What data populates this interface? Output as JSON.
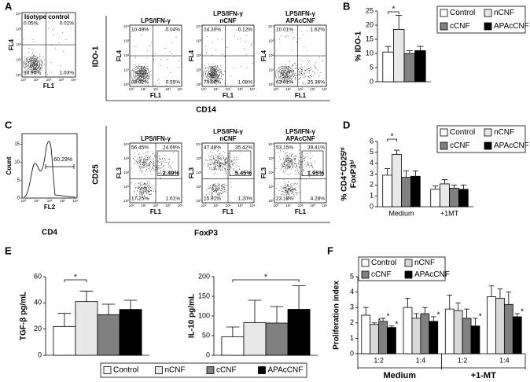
{
  "panel_labels": [
    "A",
    "B",
    "C",
    "D",
    "E",
    "F"
  ],
  "log_ticks": [
    "10⁰",
    "10¹",
    "10²",
    "10³",
    "10⁴"
  ],
  "panel_a": {
    "plot_y_label": "FL4",
    "plot_x_label": "FL1",
    "y_title": "IDO-1",
    "x_title": "CD14",
    "plots": [
      {
        "title": [
          "Isotype control"
        ],
        "quadrants": [
          "0.05%",
          "0.02%",
          "98.90%",
          "1.03%"
        ]
      },
      {
        "title": [
          "LPS/IFN-γ"
        ],
        "quadrants": [
          "10.49%",
          "0.04%",
          "88.92%",
          "0.55%"
        ]
      },
      {
        "title": [
          "LPS/IFN-γ",
          "nCNF"
        ],
        "quadrants": [
          "24.30%",
          "0.12%",
          "74.50%",
          "1.08%"
        ]
      },
      {
        "title": [
          "LPS/IFN-γ",
          "APAcCNF"
        ],
        "quadrants": [
          "10.01%",
          "1.62%",
          "63.01%",
          "25.36%"
        ]
      }
    ]
  },
  "panel_c": {
    "histogram": {
      "y_label": "Count",
      "x_label": "FL2",
      "yticks": [
        0,
        5,
        10,
        15
      ],
      "ylim": [
        0,
        18
      ],
      "gate": "60.29%",
      "title": "CD4"
    },
    "plot_y_label": "FL3",
    "plot_x_label": "FL1",
    "y_title": "CD25",
    "x_title": "FoxP3",
    "plots": [
      {
        "title": [
          "LPS/IFN-γ"
        ],
        "quadrants": [
          "56.45%",
          "24.69%",
          "17.25%",
          "1.61%"
        ],
        "gate": "2.49%"
      },
      {
        "title": [
          "LPS/IFN-γ",
          "nCNF"
        ],
        "quadrants": [
          "47.48%",
          "35.42%",
          "15.91%",
          "1.20%"
        ],
        "gate": "5.45%"
      },
      {
        "title": [
          "LPS/IFN-γ",
          "APAcCNF"
        ],
        "quadrants": [
          "53.15%",
          "39.41%",
          "23.18%",
          "4.28%"
        ],
        "gate": "1.95%"
      }
    ]
  },
  "chart_data": [
    {
      "type": "bar",
      "y_label": [
        "% IDO-1"
      ],
      "categories": [
        null
      ],
      "ylim": [
        0,
        25
      ],
      "yticks": [
        0,
        5,
        10,
        15,
        20,
        25
      ],
      "legend": "right",
      "annotations": [
        "*"
      ],
      "series": [
        {
          "name": "Control",
          "color": "#ffffff",
          "values": [
            10.5
          ],
          "errors": [
            2
          ]
        },
        {
          "name": "nCNF",
          "color": "#e8e8e8",
          "values": [
            18.5
          ],
          "errors": [
            5
          ]
        },
        {
          "name": "cCNF",
          "color": "#808080",
          "values": [
            10
          ],
          "errors": [
            1
          ]
        },
        {
          "name": "APAcCNF",
          "color": "#000000",
          "values": [
            11
          ],
          "errors": [
            1.5
          ]
        }
      ]
    },
    {
      "type": "bar",
      "y_label": [
        "% CD4⁺CD25ʰⁱ",
        "FoxP3ʰⁱ"
      ],
      "categories": [
        "Medium",
        "+1MT"
      ],
      "ylim": [
        0,
        6
      ],
      "yticks": [
        0,
        1,
        2,
        3,
        4,
        5,
        6
      ],
      "legend": "upper right",
      "annotations": [
        "*"
      ],
      "series": [
        {
          "name": "Control",
          "color": "#ffffff",
          "values": [
            2.9,
            1.6
          ],
          "errors": [
            0.6,
            0.3
          ]
        },
        {
          "name": "nCNF",
          "color": "#e8e8e8",
          "values": [
            4.8,
            2.1
          ],
          "errors": [
            0.4,
            0.4
          ]
        },
        {
          "name": "cCNF",
          "color": "#808080",
          "values": [
            2.7,
            1.7
          ],
          "errors": [
            0.6,
            0.3
          ]
        },
        {
          "name": "APAcCNF",
          "color": "#000000",
          "values": [
            2.8,
            1.6
          ],
          "errors": [
            0.5,
            0.4
          ]
        }
      ]
    },
    {
      "type": "bar",
      "y_label": [
        "TGF-β pg/mL"
      ],
      "categories": [
        null
      ],
      "ylim": [
        0,
        60
      ],
      "yticks": [
        0,
        20,
        40,
        60
      ],
      "legend": "bottom",
      "annotations": [
        "*"
      ],
      "series": [
        {
          "name": "Control",
          "color": "#ffffff",
          "values": [
            22
          ],
          "errors": [
            10
          ]
        },
        {
          "name": "nCNF",
          "color": "#e8e8e8",
          "values": [
            41
          ],
          "errors": [
            8
          ]
        },
        {
          "name": "cCNF",
          "color": "#808080",
          "values": [
            31
          ],
          "errors": [
            8
          ]
        },
        {
          "name": "APAcCNF",
          "color": "#000000",
          "values": [
            35
          ],
          "errors": [
            7
          ]
        }
      ]
    },
    {
      "type": "bar",
      "y_label": [
        "IL-10 pg/mL"
      ],
      "categories": [
        null
      ],
      "ylim": [
        0,
        200
      ],
      "yticks": [
        0,
        50,
        100,
        150,
        200
      ],
      "annotations": [
        "*"
      ],
      "series": [
        {
          "color": "#ffffff",
          "values": [
            47
          ],
          "errors": [
            25
          ]
        },
        {
          "color": "#e8e8e8",
          "values": [
            83
          ],
          "errors": [
            57
          ]
        },
        {
          "color": "#808080",
          "values": [
            82
          ],
          "errors": [
            42
          ]
        },
        {
          "color": "#000000",
          "values": [
            117
          ],
          "errors": [
            60
          ]
        }
      ]
    },
    {
      "type": "bar",
      "y_label": [
        "Proliferation index"
      ],
      "categories": [
        "1:2",
        "1:4",
        "1:2",
        "1:4"
      ],
      "groups": [
        "Medium",
        "+1-MT"
      ],
      "ylim": [
        0,
        5
      ],
      "yticks": [
        0,
        1,
        2,
        3,
        4,
        5
      ],
      "legend": "upper left",
      "annotations": [
        "*",
        "*",
        "*",
        "*",
        "*",
        "*"
      ],
      "series": [
        {
          "name": "Control",
          "color": "#ffffff",
          "values": [
            2.5,
            3.0,
            2.9,
            3.7
          ],
          "errors": [
            0.5,
            0.6,
            0.9,
            0.7
          ]
        },
        {
          "name": "nCNF",
          "color": "#d9d9d9",
          "values": [
            1.9,
            2.3,
            2.8,
            3.6
          ],
          "errors": [
            0.1,
            0.3,
            0.5,
            0.6
          ]
        },
        {
          "name": "cCNF",
          "color": "#808080",
          "values": [
            2.1,
            2.6,
            2.3,
            3.2
          ],
          "errors": [
            0.2,
            0.4,
            0.6,
            0.8
          ]
        },
        {
          "name": "APAcCNF",
          "color": "#000000",
          "values": [
            1.7,
            2.1,
            1.8,
            2.4
          ],
          "errors": [
            0.1,
            0.3,
            0.5,
            0.2
          ]
        }
      ]
    }
  ]
}
